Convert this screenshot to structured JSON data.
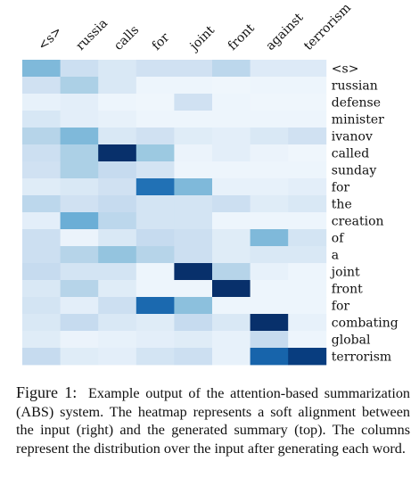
{
  "chart_data": {
    "type": "heatmap",
    "colormap": "Blues",
    "value_range": [
      0,
      1
    ],
    "columns": [
      "<s>",
      "russia",
      "calls",
      "for",
      "joint",
      "front",
      "against",
      "terrorism"
    ],
    "rows": [
      "<s>",
      "russian",
      "defense",
      "minister",
      "ivanov",
      "called",
      "sunday",
      "for",
      "the",
      "creation",
      "of",
      "a",
      "joint",
      "front",
      "for",
      "combating",
      "global",
      "terrorism"
    ],
    "values": [
      [
        0.45,
        0.22,
        0.15,
        0.2,
        0.2,
        0.28,
        0.13,
        0.13
      ],
      [
        0.2,
        0.33,
        0.15,
        0.05,
        0.05,
        0.04,
        0.05,
        0.05
      ],
      [
        0.08,
        0.1,
        0.05,
        0.04,
        0.2,
        0.05,
        0.04,
        0.04
      ],
      [
        0.16,
        0.1,
        0.08,
        0.05,
        0.05,
        0.05,
        0.05,
        0.05
      ],
      [
        0.3,
        0.45,
        0.15,
        0.2,
        0.12,
        0.1,
        0.15,
        0.2
      ],
      [
        0.22,
        0.33,
        1.0,
        0.38,
        0.06,
        0.1,
        0.06,
        0.04
      ],
      [
        0.2,
        0.33,
        0.25,
        0.18,
        0.05,
        0.05,
        0.05,
        0.05
      ],
      [
        0.12,
        0.15,
        0.2,
        0.75,
        0.45,
        0.08,
        0.08,
        0.1
      ],
      [
        0.28,
        0.2,
        0.25,
        0.18,
        0.18,
        0.22,
        0.12,
        0.15
      ],
      [
        0.1,
        0.5,
        0.28,
        0.18,
        0.18,
        0.05,
        0.05,
        0.05
      ],
      [
        0.22,
        0.06,
        0.15,
        0.25,
        0.22,
        0.12,
        0.45,
        0.18
      ],
      [
        0.22,
        0.3,
        0.4,
        0.3,
        0.22,
        0.12,
        0.15,
        0.15
      ],
      [
        0.25,
        0.18,
        0.18,
        0.05,
        1.0,
        0.3,
        0.08,
        0.05
      ],
      [
        0.15,
        0.3,
        0.12,
        0.05,
        0.05,
        1.0,
        0.05,
        0.05
      ],
      [
        0.18,
        0.1,
        0.22,
        0.78,
        0.42,
        0.05,
        0.05,
        0.05
      ],
      [
        0.15,
        0.25,
        0.15,
        0.12,
        0.25,
        0.15,
        1.0,
        0.08
      ],
      [
        0.12,
        0.06,
        0.08,
        0.1,
        0.12,
        0.08,
        0.25,
        0.05
      ],
      [
        0.25,
        0.12,
        0.1,
        0.18,
        0.22,
        0.08,
        0.8,
        0.95
      ]
    ]
  },
  "caption": {
    "label": "Figure 1:",
    "text": "Example output of the attention-based summarization (ABS) system. The heatmap represents a soft alignment between the input (right) and the generated summary (top). The columns represent the distribution over the input after generating each word."
  }
}
